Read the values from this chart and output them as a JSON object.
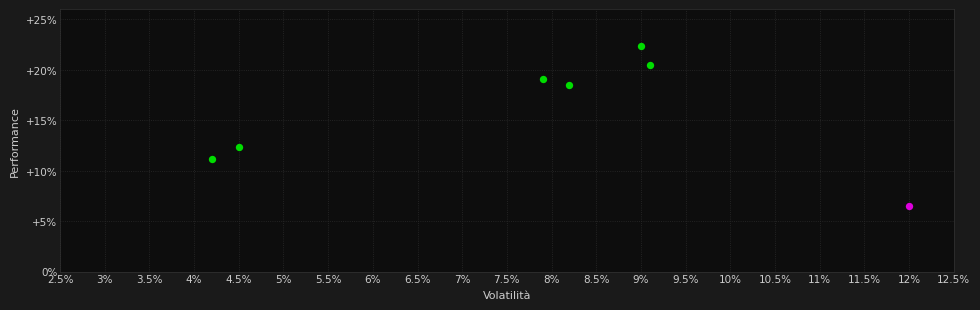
{
  "background_color": "#1a1a1a",
  "plot_bg_color": "#0d0d0d",
  "grid_color": "#2a2a2a",
  "text_color": "#cccccc",
  "xlabel": "Volatilità",
  "ylabel": "Performance",
  "xlim": [
    0.025,
    0.125
  ],
  "ylim": [
    0.0,
    0.26
  ],
  "xticks": [
    0.025,
    0.03,
    0.035,
    0.04,
    0.045,
    0.05,
    0.055,
    0.06,
    0.065,
    0.07,
    0.075,
    0.08,
    0.085,
    0.09,
    0.095,
    0.1,
    0.105,
    0.11,
    0.115,
    0.12,
    0.125
  ],
  "yticks": [
    0.0,
    0.05,
    0.1,
    0.15,
    0.2,
    0.25
  ],
  "green_points": [
    [
      0.042,
      0.112
    ],
    [
      0.045,
      0.123
    ],
    [
      0.079,
      0.191
    ],
    [
      0.082,
      0.185
    ],
    [
      0.09,
      0.224
    ],
    [
      0.091,
      0.205
    ]
  ],
  "purple_points": [
    [
      0.12,
      0.065
    ]
  ],
  "green_color": "#00dd00",
  "purple_color": "#dd00dd",
  "marker_size": 28,
  "axis_fontsize": 8,
  "tick_fontsize": 7.5
}
